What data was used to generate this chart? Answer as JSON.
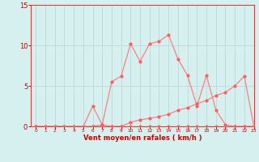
{
  "background_color": "#d6f0f0",
  "grid_color": "#c0d8d8",
  "line_color": "#ff8080",
  "marker_color": "#ff6060",
  "axis_label_color": "#cc0000",
  "tick_color": "#cc0000",
  "spine_color": "#cc4444",
  "xlabel": "Vent moyen/en rafales ( km/h )",
  "xlim": [
    -0.5,
    23
  ],
  "ylim": [
    0,
    15
  ],
  "xticks": [
    0,
    1,
    2,
    3,
    4,
    5,
    6,
    7,
    8,
    9,
    10,
    11,
    12,
    13,
    14,
    15,
    16,
    17,
    18,
    19,
    20,
    21,
    22,
    23
  ],
  "yticks": [
    0,
    5,
    10,
    15
  ],
  "series1_x": [
    0,
    1,
    2,
    3,
    4,
    5,
    6,
    7,
    8,
    9,
    10,
    11,
    12,
    13,
    14,
    15,
    16,
    17,
    18,
    19,
    20,
    21,
    22,
    23
  ],
  "series1_y": [
    0,
    0,
    0,
    0,
    0,
    0,
    0,
    0,
    0,
    0,
    0,
    0,
    0,
    0,
    0,
    0,
    0,
    0,
    0,
    0,
    0,
    0,
    0,
    0
  ],
  "series2_x": [
    0,
    1,
    2,
    3,
    4,
    5,
    6,
    7,
    8,
    9,
    10,
    11,
    12,
    13,
    14,
    15,
    16,
    17,
    18,
    19,
    20,
    21,
    22,
    23
  ],
  "series2_y": [
    0,
    0,
    0,
    0,
    0,
    0,
    2.5,
    0.2,
    5.5,
    6.2,
    10.2,
    8.0,
    10.2,
    10.5,
    11.3,
    8.3,
    6.3,
    2.5,
    6.3,
    2.0,
    0.2,
    0,
    0,
    0
  ],
  "series3_x": [
    0,
    6,
    7,
    8,
    9,
    10,
    11,
    12,
    13,
    14,
    15,
    16,
    17,
    18,
    19,
    20,
    21,
    22,
    23
  ],
  "series3_y": [
    0,
    0,
    0.2,
    0,
    0,
    0.5,
    0.8,
    1.0,
    1.2,
    1.5,
    2.0,
    2.3,
    2.8,
    3.2,
    3.8,
    4.2,
    5.0,
    6.2,
    0
  ]
}
